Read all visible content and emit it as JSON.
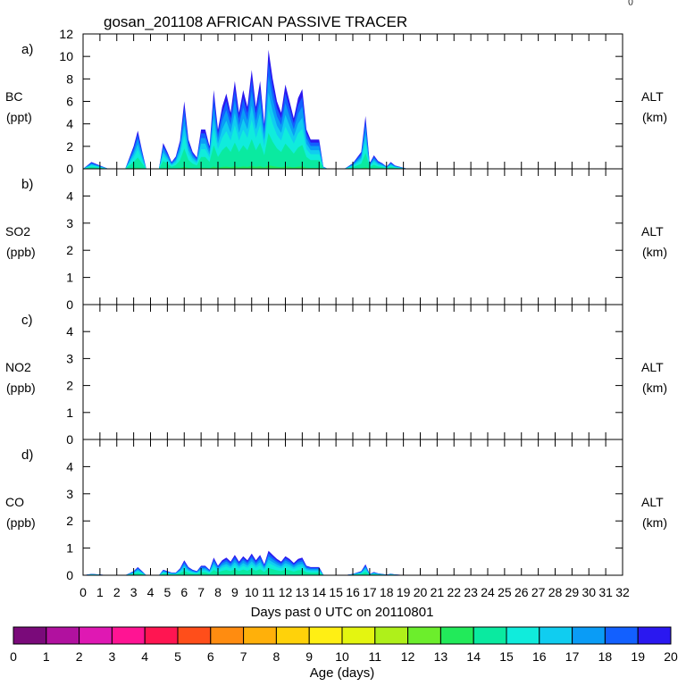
{
  "title": "gosan_201108 AFRICAN PASSIVE TRACER",
  "corner_mark": "()",
  "xlabel": "Days past 0 UTC on 20110801",
  "x_ticks": [
    "0",
    "1",
    "2",
    "3",
    "4",
    "5",
    "6",
    "7",
    "8",
    "9",
    "10",
    "11",
    "12",
    "13",
    "14",
    "15",
    "16",
    "17",
    "18",
    "19",
    "20",
    "21",
    "22",
    "23",
    "24",
    "25",
    "26",
    "27",
    "28",
    "29",
    "30",
    "31",
    "32"
  ],
  "colorbar": {
    "label": "Age (days)",
    "ticks": [
      "0",
      "1",
      "2",
      "3",
      "4",
      "5",
      "6",
      "7",
      "8",
      "9",
      "10",
      "11",
      "12",
      "13",
      "14",
      "15",
      "16",
      "17",
      "18",
      "19",
      "20"
    ],
    "colors": [
      "#7a0a7a",
      "#b1119f",
      "#df18b3",
      "#ff1493",
      "#ff1551",
      "#ff4e1a",
      "#ff8c10",
      "#ffb00a",
      "#ffd20a",
      "#ffef14",
      "#e4f510",
      "#aff01a",
      "#6cee2c",
      "#22ea5a",
      "#0aeaa0",
      "#10ecdc",
      "#10cdf0",
      "#0a9cf6",
      "#1260ff",
      "#2a18f0"
    ]
  },
  "chart_data": [
    {
      "type": "area",
      "panel_label": "a)",
      "ylabel": "BC",
      "yunit": "(ppt)",
      "right_label": "ALT",
      "right_unit": "(km)",
      "ylim": [
        0,
        12
      ],
      "y_ticks": [
        "0",
        "2",
        "4",
        "6",
        "8",
        "10",
        "12"
      ],
      "xlim": [
        0,
        32
      ],
      "x": [
        0,
        0.5,
        1,
        1.5,
        2,
        2.5,
        3,
        3.25,
        3.5,
        3.75,
        4,
        4.5,
        4.75,
        5,
        5.25,
        5.5,
        5.75,
        6,
        6.25,
        6.5,
        6.75,
        7,
        7.25,
        7.5,
        7.75,
        8,
        8.25,
        8.5,
        8.75,
        9,
        9.25,
        9.5,
        9.75,
        10,
        10.25,
        10.5,
        10.75,
        11,
        11.25,
        11.5,
        11.75,
        12,
        12.25,
        12.5,
        12.75,
        13,
        13.25,
        13.5,
        13.75,
        14,
        14.25,
        14.5,
        14.75,
        15,
        15.5,
        16,
        16.5,
        16.75,
        17,
        17.25,
        17.5,
        17.75,
        18,
        18.25,
        18.5,
        18.75,
        19,
        19.25,
        19.5,
        19.75,
        20,
        20.5,
        21,
        22,
        24,
        26,
        28,
        30,
        32
      ],
      "values": [
        0,
        0.6,
        0.3,
        0,
        0,
        0,
        2,
        3.4,
        1.6,
        0,
        0,
        0,
        2.3,
        1.5,
        0.6,
        1.1,
        2.5,
        6,
        2.6,
        1.5,
        1,
        3.5,
        3.5,
        2,
        7,
        3.5,
        5.5,
        6.7,
        5,
        7.8,
        5,
        7,
        5.5,
        8.8,
        5.5,
        7.8,
        4,
        10.6,
        8,
        6,
        5,
        7.5,
        6,
        4.5,
        6.3,
        7.1,
        3.5,
        2.6,
        2.6,
        2.6,
        0.2,
        0,
        0,
        0,
        0,
        0.5,
        1.5,
        4.7,
        0.5,
        1.2,
        0.7,
        0.5,
        0.2,
        0.6,
        0.3,
        0.2,
        0.1,
        0,
        0,
        0,
        0,
        0,
        0,
        0,
        0,
        0,
        0,
        0,
        0
      ]
    },
    {
      "type": "area",
      "panel_label": "b)",
      "ylabel": "SO2",
      "yunit": "(ppb)",
      "right_label": "ALT",
      "right_unit": "(km)",
      "ylim": [
        0,
        5
      ],
      "y_ticks": [
        "0",
        "1",
        "2",
        "3",
        "4"
      ],
      "xlim": [
        0,
        32
      ],
      "x": [],
      "values": []
    },
    {
      "type": "area",
      "panel_label": "c)",
      "ylabel": "NO2",
      "yunit": "(ppb)",
      "right_label": "ALT",
      "right_unit": "(km)",
      "ylim": [
        0,
        5
      ],
      "y_ticks": [
        "0",
        "1",
        "2",
        "3",
        "4"
      ],
      "xlim": [
        0,
        32
      ],
      "x": [],
      "values": []
    },
    {
      "type": "area",
      "panel_label": "d)",
      "ylabel": "CO",
      "yunit": "(ppb)",
      "right_label": "ALT",
      "right_unit": "(km)",
      "ylim": [
        0,
        5
      ],
      "y_ticks": [
        "0",
        "1",
        "2",
        "3",
        "4"
      ],
      "xlim": [
        0,
        32
      ],
      "x": [
        0,
        0.5,
        1,
        1.5,
        2,
        2.5,
        3,
        3.25,
        3.5,
        3.75,
        4,
        4.5,
        4.75,
        5,
        5.25,
        5.5,
        5.75,
        6,
        6.25,
        6.5,
        6.75,
        7,
        7.25,
        7.5,
        7.75,
        8,
        8.25,
        8.5,
        8.75,
        9,
        9.25,
        9.5,
        9.75,
        10,
        10.25,
        10.5,
        10.75,
        11,
        11.25,
        11.5,
        11.75,
        12,
        12.25,
        12.5,
        12.75,
        13,
        13.25,
        13.5,
        13.75,
        14,
        14.25,
        14.5,
        14.75,
        15,
        15.5,
        16,
        16.5,
        16.75,
        17,
        17.25,
        17.5,
        17.75,
        18,
        18.25,
        18.5,
        18.75,
        19,
        19.25,
        19.5,
        19.75,
        20,
        20.5,
        21,
        22,
        24,
        26,
        28,
        30,
        32
      ],
      "values": [
        0,
        0.05,
        0.03,
        0,
        0,
        0,
        0.15,
        0.3,
        0.15,
        0,
        0,
        0,
        0.2,
        0.15,
        0.1,
        0.1,
        0.25,
        0.55,
        0.3,
        0.2,
        0.15,
        0.35,
        0.35,
        0.2,
        0.65,
        0.35,
        0.55,
        0.65,
        0.5,
        0.75,
        0.5,
        0.7,
        0.55,
        0.8,
        0.55,
        0.75,
        0.4,
        0.9,
        0.75,
        0.6,
        0.5,
        0.7,
        0.6,
        0.45,
        0.6,
        0.65,
        0.35,
        0.3,
        0.3,
        0.3,
        0.02,
        0,
        0,
        0,
        0,
        0.05,
        0.15,
        0.4,
        0.05,
        0.12,
        0.07,
        0.05,
        0.02,
        0.06,
        0.03,
        0.02,
        0.01,
        0,
        0,
        0,
        0,
        0,
        0,
        0,
        0,
        0,
        0,
        0,
        0
      ]
    }
  ]
}
